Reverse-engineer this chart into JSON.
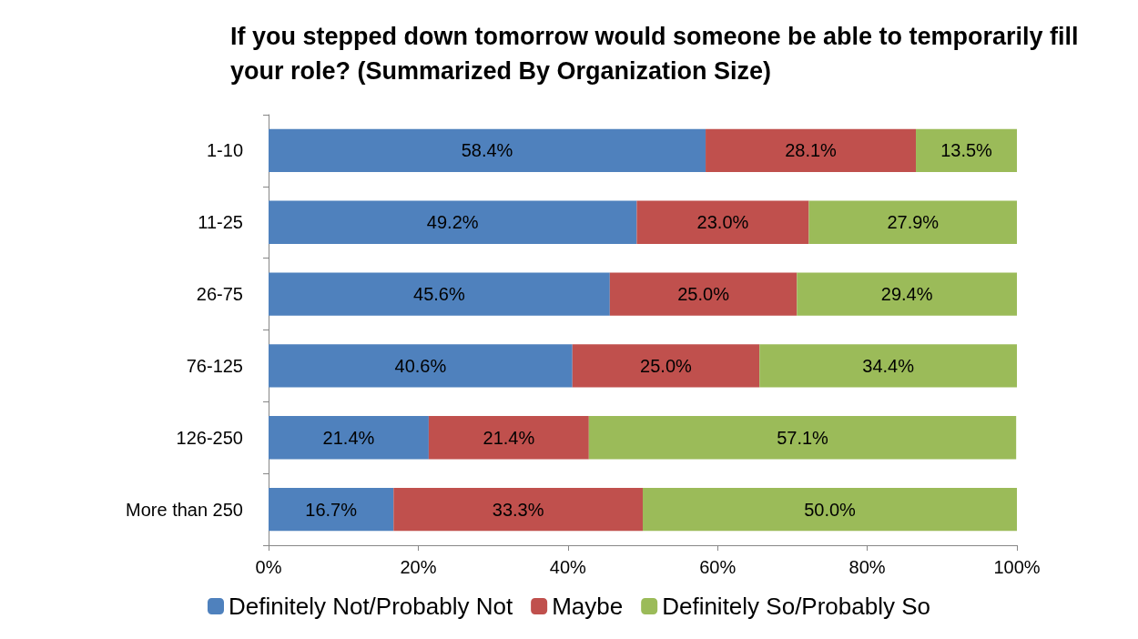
{
  "chart_data": {
    "type": "bar",
    "orientation": "horizontal",
    "stacked": true,
    "title": "If you stepped down tomorrow would someone be able to temporarily fill your role? (Summarized By Organization Size)",
    "categories": [
      "1-10",
      "11-25",
      "26-75",
      "76-125",
      "126-250",
      "More than 250"
    ],
    "series": [
      {
        "name": "Definitely Not/Probably Not",
        "color": "#4f81bd",
        "values": [
          58.4,
          49.2,
          45.6,
          40.6,
          21.4,
          16.7
        ],
        "value_labels": [
          "58.4%",
          "49.2%",
          "45.6%",
          "40.6%",
          "21.4%",
          "16.7%"
        ]
      },
      {
        "name": "Maybe",
        "color": "#c0504d",
        "values": [
          28.1,
          23.0,
          25.0,
          25.0,
          21.4,
          33.3
        ],
        "value_labels": [
          "28.1%",
          "23.0%",
          "25.0%",
          "25.0%",
          "21.4%",
          "33.3%"
        ]
      },
      {
        "name": "Definitely So/Probably So",
        "color": "#9bbb59",
        "values": [
          13.5,
          27.9,
          29.4,
          34.4,
          57.1,
          50.0
        ],
        "value_labels": [
          "13.5%",
          "27.9%",
          "29.4%",
          "34.4%",
          "57.1%",
          "50.0%"
        ]
      }
    ],
    "xlim": [
      0,
      100
    ],
    "xticks": [
      {
        "value": 0,
        "label": "0%"
      },
      {
        "value": 20,
        "label": "20%"
      },
      {
        "value": 40,
        "label": "40%"
      },
      {
        "value": 60,
        "label": "60%"
      },
      {
        "value": 80,
        "label": "80%"
      },
      {
        "value": 100,
        "label": "100%"
      }
    ],
    "grid": false,
    "legend": "bottom"
  }
}
